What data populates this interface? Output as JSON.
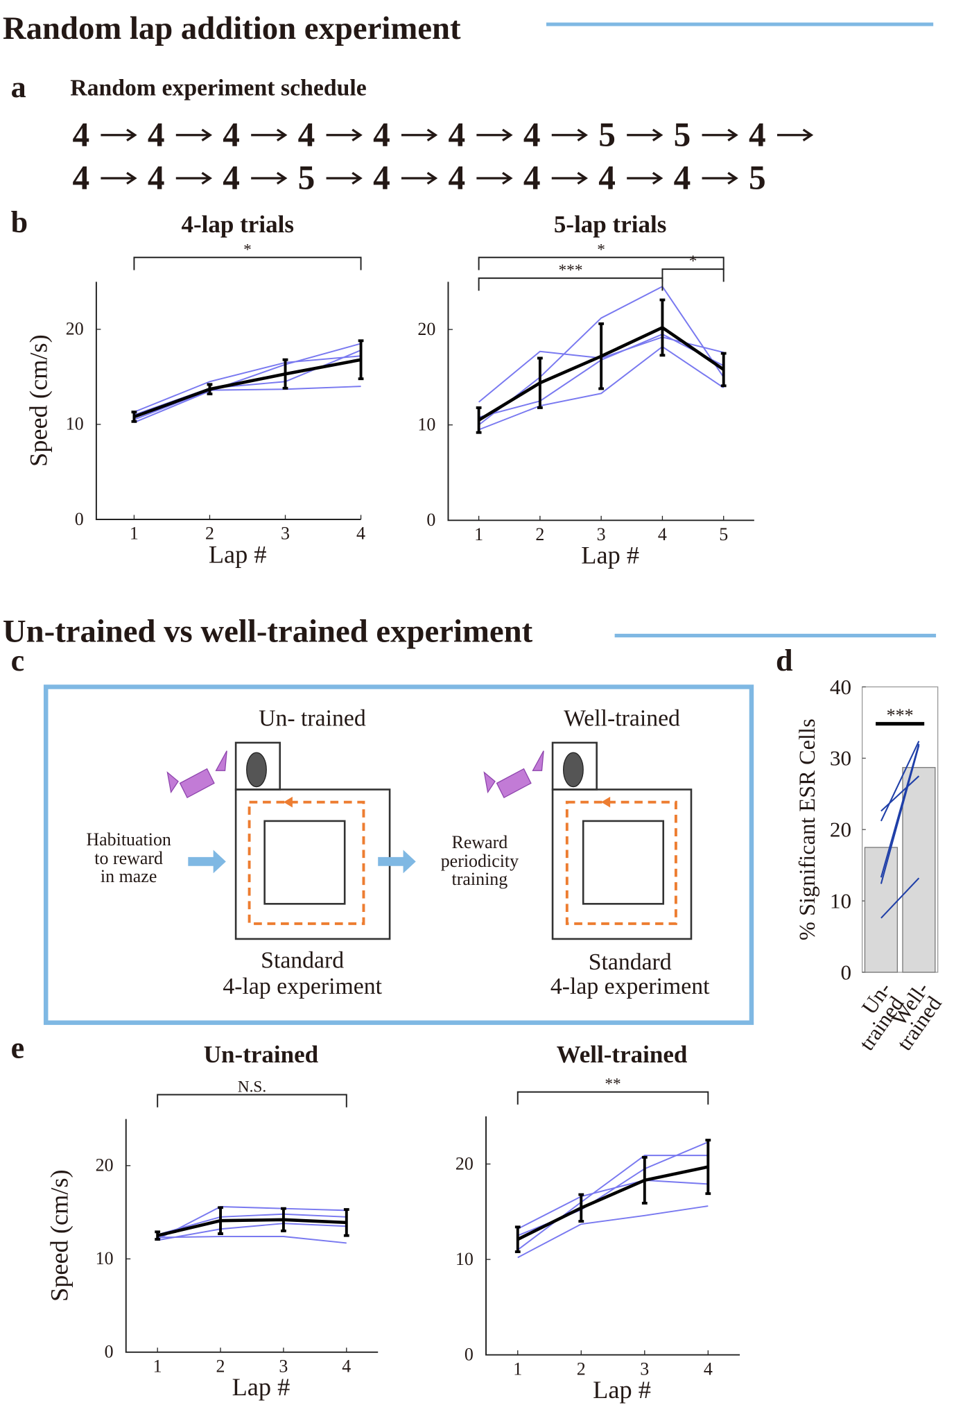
{
  "sections": [
    "Random lap addition experiment",
    "Un-trained vs well-trained experiment"
  ],
  "panel_labels": [
    "a",
    "b",
    "c",
    "d",
    "e"
  ],
  "panel_a": {
    "title": "Random experiment schedule",
    "schedule": [
      4,
      4,
      4,
      4,
      4,
      4,
      4,
      5,
      5,
      4,
      4,
      4,
      4,
      5,
      4,
      4,
      4,
      4,
      4,
      5
    ]
  },
  "panel_c": {
    "left_title": "Un- trained",
    "right_title": "Well-trained",
    "step1": [
      "Habituation",
      "to reward",
      "in maze"
    ],
    "step2": [
      "Reward",
      "periodicity",
      "training"
    ],
    "left_caption": [
      "Standard",
      "4-lap experiment"
    ],
    "right_caption": [
      "Standard",
      "4-lap experiment"
    ]
  },
  "chart_data": [
    {
      "type": "line",
      "title": "4-lap trials",
      "xlabel": "Lap #",
      "ylabel": "Speed (cm/s)",
      "x": [
        1,
        2,
        3,
        4
      ],
      "xlim": [
        0.5,
        4
      ],
      "xticks": [
        1,
        2,
        3,
        4
      ],
      "ylim": [
        0,
        25
      ],
      "yticks": [
        0,
        10,
        20
      ],
      "series": [
        {
          "color": "#7878f0",
          "values": [
            11.3,
            14.5,
            16.5,
            17.2
          ]
        },
        {
          "color": "#7878f0",
          "values": [
            10.2,
            13.5,
            16.3,
            18.5
          ]
        },
        {
          "color": "#7878f0",
          "values": [
            10.5,
            13.6,
            13.7,
            14.0
          ]
        },
        {
          "color": "#7878f0",
          "values": [
            11.0,
            13.8,
            14.5,
            17.8
          ]
        },
        {
          "color": "#000000",
          "values": [
            10.8,
            13.7,
            15.3,
            16.8
          ],
          "errors": [
            0.5,
            0.5,
            1.5,
            2.0
          ]
        }
      ],
      "annotations": [
        {
          "from": 1,
          "to": 4,
          "label": "*"
        }
      ]
    },
    {
      "type": "line",
      "title": "5-lap trials",
      "xlabel": "Lap #",
      "x": [
        1,
        2,
        3,
        4,
        5
      ],
      "xlim": [
        0.5,
        5.5
      ],
      "xticks": [
        1,
        2,
        3,
        4,
        5
      ],
      "ylim": [
        0,
        25
      ],
      "yticks": [
        0,
        10,
        20
      ],
      "series": [
        {
          "color": "#7878f0",
          "values": [
            12.4,
            17.7,
            17.0,
            19.2,
            17.6
          ]
        },
        {
          "color": "#7878f0",
          "values": [
            9.5,
            12.0,
            13.3,
            18.2,
            13.9
          ]
        },
        {
          "color": "#7878f0",
          "values": [
            10.0,
            15.0,
            21.2,
            24.5,
            15.0
          ]
        },
        {
          "color": "#7878f0",
          "values": [
            10.8,
            12.5,
            16.8,
            19.5,
            16.2
          ]
        },
        {
          "color": "#000000",
          "values": [
            10.5,
            14.4,
            17.2,
            20.2,
            15.8
          ],
          "errors": [
            1.3,
            2.6,
            3.4,
            2.9,
            1.7
          ]
        }
      ],
      "annotations": [
        {
          "from": 1,
          "to": 5,
          "label": "*"
        },
        {
          "from": 1,
          "to": 4,
          "label": "***"
        },
        {
          "from": 4,
          "to": 5,
          "label": "*"
        }
      ]
    },
    {
      "type": "bar",
      "ylabel": "% Significant ESR Cells",
      "categories": [
        [
          "Un-",
          "trained"
        ],
        [
          "Well-",
          "trained"
        ]
      ],
      "values": [
        17.5,
        28.7
      ],
      "color": "#d9d9d9",
      "ylim": [
        0,
        40
      ],
      "yticks": [
        0,
        10,
        20,
        30,
        40
      ],
      "paired": [
        [
          7.6,
          13.2
        ],
        [
          12.4,
          31.8
        ],
        [
          13.3,
          32.0
        ],
        [
          21.2,
          32.4
        ],
        [
          22.6,
          27.5
        ]
      ],
      "paired_color": "#1f3fa8",
      "annotations": [
        {
          "label": "***"
        }
      ]
    },
    {
      "type": "line",
      "title": "Un-trained",
      "xlabel": "Lap #",
      "ylabel": "Speed (cm/s)",
      "x": [
        1,
        2,
        3,
        4
      ],
      "xlim": [
        0.5,
        4.5
      ],
      "xticks": [
        1,
        2,
        3,
        4
      ],
      "ylim": [
        0,
        25
      ],
      "yticks": [
        0,
        10,
        20
      ],
      "series": [
        {
          "color": "#7878f0",
          "values": [
            12.1,
            15.6,
            15.4,
            15.2
          ]
        },
        {
          "color": "#7878f0",
          "values": [
            12.3,
            12.4,
            12.4,
            11.7
          ]
        },
        {
          "color": "#7878f0",
          "values": [
            12.6,
            14.5,
            14.8,
            14.5
          ]
        },
        {
          "color": "#7878f0",
          "values": [
            12.0,
            13.2,
            13.8,
            13.5
          ]
        },
        {
          "color": "#000000",
          "values": [
            12.5,
            14.1,
            14.2,
            13.9
          ],
          "errors": [
            0.4,
            1.4,
            1.2,
            1.4
          ]
        }
      ],
      "annotations": [
        {
          "from": 1,
          "to": 4,
          "label": "N.S."
        }
      ]
    },
    {
      "type": "line",
      "title": "Well-trained",
      "xlabel": "Lap #",
      "x": [
        1,
        2,
        3,
        4
      ],
      "xlim": [
        0.5,
        4.5
      ],
      "xticks": [
        1,
        2,
        3,
        4
      ],
      "ylim": [
        0,
        25
      ],
      "yticks": [
        0,
        10,
        20
      ],
      "series": [
        {
          "color": "#7878f0",
          "values": [
            10.2,
            13.7,
            14.6,
            15.6
          ]
        },
        {
          "color": "#7878f0",
          "values": [
            11.0,
            16.0,
            20.9,
            20.9
          ]
        },
        {
          "color": "#7878f0",
          "values": [
            13.2,
            16.6,
            18.3,
            17.9
          ]
        },
        {
          "color": "#7878f0",
          "values": [
            12.5,
            15.2,
            19.5,
            22.3
          ]
        },
        {
          "color": "#000000",
          "values": [
            12.1,
            15.4,
            18.3,
            19.7
          ],
          "errors": [
            1.3,
            1.4,
            2.4,
            2.8
          ]
        }
      ],
      "annotations": [
        {
          "from": 1,
          "to": 4,
          "label": "**"
        }
      ]
    }
  ]
}
